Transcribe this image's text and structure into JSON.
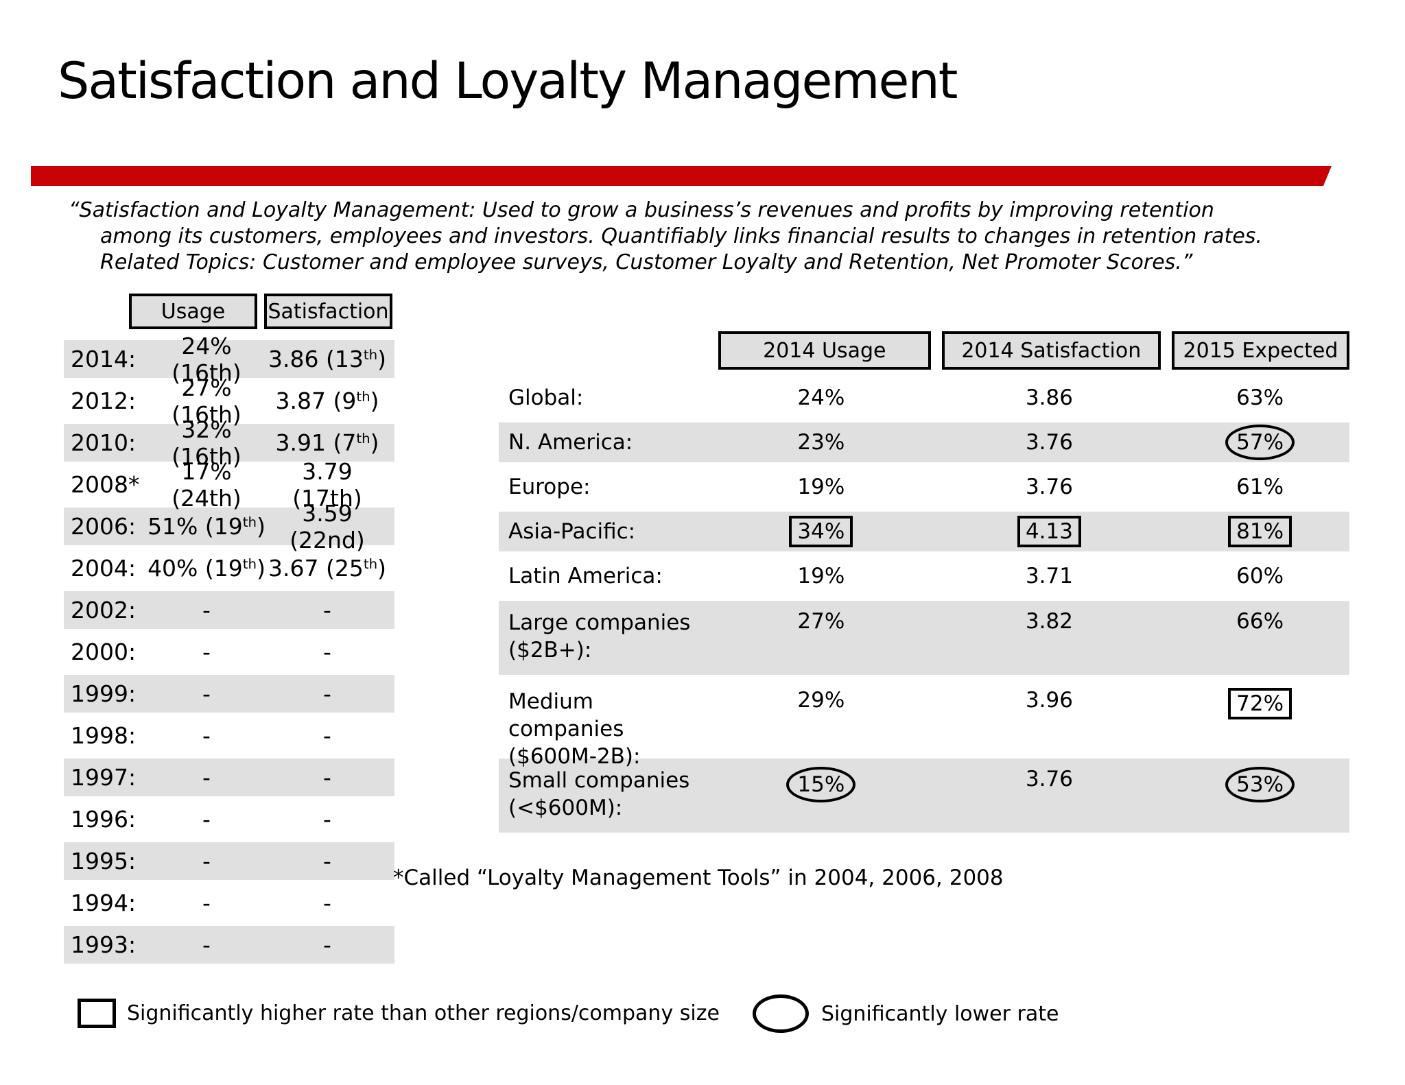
{
  "title": "Satisfaction and Loyalty Management",
  "quote": {
    "line1": "“Satisfaction and Loyalty Management: Used to grow a business’s revenues and profits by improving retention",
    "line2": "among its customers, employees and investors.  Quantifiably links financial results to changes in retention rates.",
    "line3": "Related Topics: Customer and employee surveys, Customer Loyalty and Retention, Net Promoter Scores.”"
  },
  "history_table": {
    "headers": [
      "Usage",
      "Satisfaction"
    ],
    "rows": [
      {
        "year": "2014:",
        "shaded": true,
        "usage": [
          {
            "t": "24% (16th)"
          }
        ],
        "satisfaction": [
          {
            "t": "3.86 (13"
          },
          {
            "t": "th",
            "sup": true
          },
          {
            "t": ")"
          }
        ]
      },
      {
        "year": "2012:",
        "shaded": false,
        "usage": [
          {
            "t": "27% (16th)"
          }
        ],
        "satisfaction": [
          {
            "t": "3.87 (9"
          },
          {
            "t": "th",
            "sup": true
          },
          {
            "t": ")"
          }
        ]
      },
      {
        "year": "2010:",
        "shaded": true,
        "usage": [
          {
            "t": "32% (16th)"
          }
        ],
        "satisfaction": [
          {
            "t": "3.91 (7"
          },
          {
            "t": "th",
            "sup": true
          },
          {
            "t": ")"
          }
        ]
      },
      {
        "year": "2008*",
        "shaded": false,
        "usage": [
          {
            "t": "17% (24th)"
          }
        ],
        "satisfaction": [
          {
            "t": "3.79 (17th)"
          }
        ]
      },
      {
        "year": "2006:",
        "shaded": true,
        "usage": [
          {
            "t": "51% (19"
          },
          {
            "t": "th",
            "sup": true
          },
          {
            "t": ")"
          }
        ],
        "satisfaction": [
          {
            "t": "3.59 (22nd)"
          }
        ]
      },
      {
        "year": "2004:",
        "shaded": false,
        "usage": [
          {
            "t": "40% (19"
          },
          {
            "t": "th",
            "sup": true
          },
          {
            "t": ")"
          }
        ],
        "satisfaction": [
          {
            "t": "3.67 (25"
          },
          {
            "t": "th",
            "sup": true
          },
          {
            "t": ")"
          }
        ]
      },
      {
        "year": "2002:",
        "shaded": true,
        "usage": [
          {
            "t": "-"
          }
        ],
        "satisfaction": [
          {
            "t": "-"
          }
        ]
      },
      {
        "year": "2000:",
        "shaded": false,
        "usage": [
          {
            "t": "-"
          }
        ],
        "satisfaction": [
          {
            "t": "-"
          }
        ]
      },
      {
        "year": "1999:",
        "shaded": true,
        "usage": [
          {
            "t": "-"
          }
        ],
        "satisfaction": [
          {
            "t": "-"
          }
        ]
      },
      {
        "year": "1998:",
        "shaded": false,
        "usage": [
          {
            "t": "-"
          }
        ],
        "satisfaction": [
          {
            "t": "-"
          }
        ]
      },
      {
        "year": "1997:",
        "shaded": true,
        "usage": [
          {
            "t": "-"
          }
        ],
        "satisfaction": [
          {
            "t": "-"
          }
        ]
      },
      {
        "year": "1996:",
        "shaded": false,
        "usage": [
          {
            "t": "-"
          }
        ],
        "satisfaction": [
          {
            "t": "-"
          }
        ]
      },
      {
        "year": "1995:",
        "shaded": true,
        "usage": [
          {
            "t": "-"
          }
        ],
        "satisfaction": [
          {
            "t": "-"
          }
        ]
      },
      {
        "year": "1994:",
        "shaded": false,
        "usage": [
          {
            "t": "-"
          }
        ],
        "satisfaction": [
          {
            "t": "-"
          }
        ]
      },
      {
        "year": "1993:",
        "shaded": true,
        "usage": [
          {
            "t": "-"
          }
        ],
        "satisfaction": [
          {
            "t": "-"
          }
        ]
      }
    ]
  },
  "breakdown_table": {
    "headers": [
      "2014 Usage",
      "2014 Satisfaction",
      "2015 Expected"
    ],
    "rows": [
      {
        "label": "Global:",
        "shaded": false,
        "usage": {
          "t": "24%"
        },
        "satisfaction": {
          "t": "3.86"
        },
        "expected": {
          "t": "63%"
        }
      },
      {
        "label": "N. America:",
        "shaded": true,
        "usage": {
          "t": "23%"
        },
        "satisfaction": {
          "t": "3.76"
        },
        "expected": {
          "t": "57%",
          "mark": "circle"
        }
      },
      {
        "label": "Europe:",
        "shaded": false,
        "usage": {
          "t": "19%"
        },
        "satisfaction": {
          "t": "3.76"
        },
        "expected": {
          "t": "61%"
        }
      },
      {
        "label": "Asia-Pacific:",
        "shaded": true,
        "usage": {
          "t": "34%",
          "mark": "box"
        },
        "satisfaction": {
          "t": "4.13",
          "mark": "box"
        },
        "expected": {
          "t": "81%",
          "mark": "box"
        }
      },
      {
        "label": "Latin America:",
        "shaded": false,
        "usage": {
          "t": "19%"
        },
        "satisfaction": {
          "t": "3.71"
        },
        "expected": {
          "t": "60%"
        }
      },
      {
        "label": "Large companies\n($2B+):",
        "shaded": true,
        "usage": {
          "t": "27%"
        },
        "satisfaction": {
          "t": "3.82"
        },
        "expected": {
          "t": "66%"
        }
      },
      {
        "label": "Medium companies\n($600M-2B):",
        "shaded": false,
        "usage": {
          "t": "29%"
        },
        "satisfaction": {
          "t": "3.96"
        },
        "expected": {
          "t": "72%",
          "mark": "box"
        }
      },
      {
        "label": "Small companies\n(<$600M):",
        "shaded": true,
        "usage": {
          "t": "15%",
          "mark": "circle"
        },
        "satisfaction": {
          "t": "3.76"
        },
        "expected": {
          "t": "53%",
          "mark": "circle"
        }
      }
    ]
  },
  "footnote": "*Called “Loyalty Management Tools” in 2004, 2006, 2008",
  "legend": {
    "box_label": "Significantly higher rate than other regions/company size",
    "circle_label": "Significantly lower rate"
  },
  "colors": {
    "accent_red": "#C80202",
    "row_shade": "#E0E0E0",
    "header_fill": "#DFDFDF"
  }
}
